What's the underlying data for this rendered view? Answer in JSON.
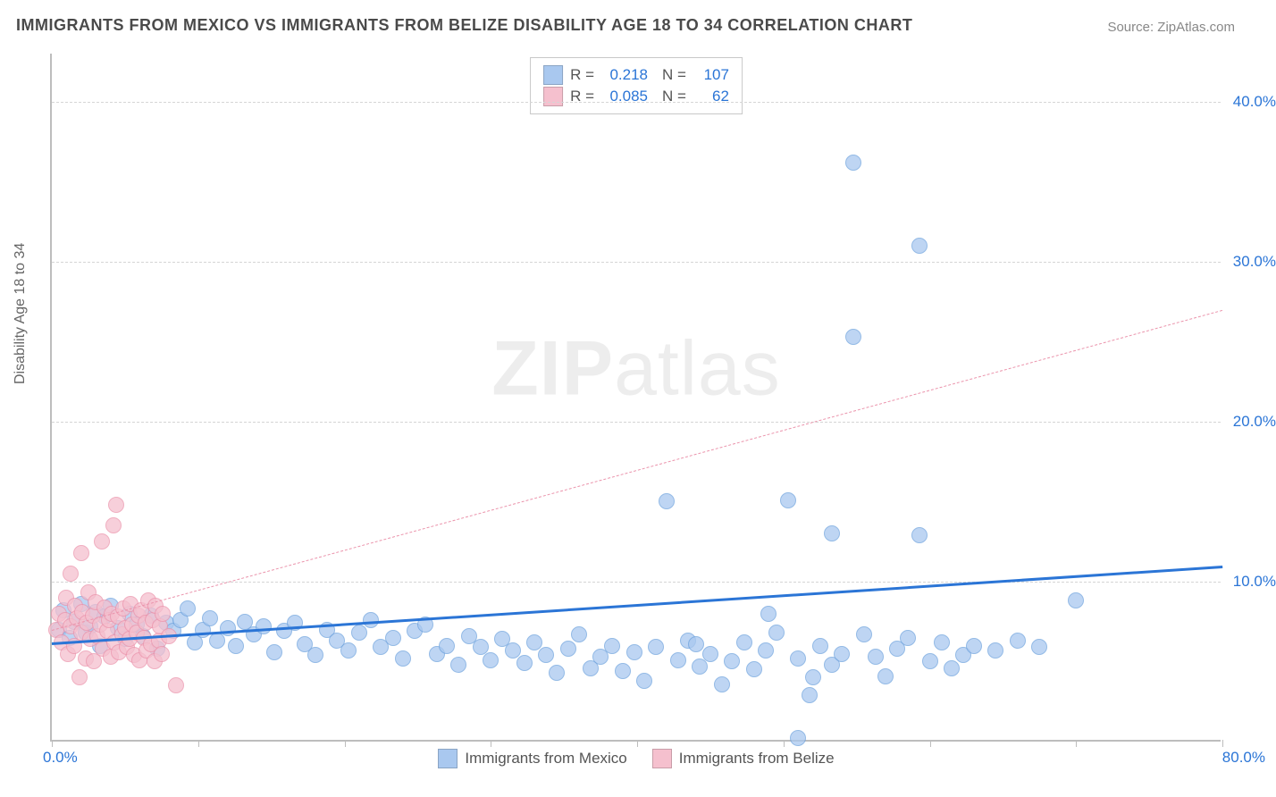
{
  "title": "IMMIGRANTS FROM MEXICO VS IMMIGRANTS FROM BELIZE DISABILITY AGE 18 TO 34 CORRELATION CHART",
  "source": "Source: ZipAtlas.com",
  "ylabel": "Disability Age 18 to 34",
  "watermark_bold": "ZIP",
  "watermark_rest": "atlas",
  "chart": {
    "type": "scatter",
    "xlim": [
      0,
      80
    ],
    "ylim": [
      0,
      43
    ],
    "x_ticks": [
      0,
      10,
      20,
      30,
      40,
      50,
      60,
      70,
      80
    ],
    "x_tick_labels": {
      "start": "0.0%",
      "end": "80.0%"
    },
    "y_ticks": [
      10,
      20,
      30,
      40
    ],
    "y_tick_labels": [
      "10.0%",
      "20.0%",
      "30.0%",
      "40.0%"
    ],
    "grid_color": "#d5d5d5",
    "axis_color": "#bdbdbd",
    "background_color": "#ffffff",
    "point_radius": 9,
    "series": [
      {
        "name": "Immigrants from Mexico",
        "color_fill": "#a9c8ef",
        "color_stroke": "#6fa3de",
        "R": "0.218",
        "N": "107",
        "trend": {
          "x1": 0,
          "y1": 6.2,
          "x2": 80,
          "y2": 11.0,
          "stroke": "#2b75d6",
          "width": 3,
          "dash": false
        },
        "points": [
          [
            0.5,
            7.0
          ],
          [
            0.8,
            8.2
          ],
          [
            1.2,
            6.5
          ],
          [
            1.5,
            7.5
          ],
          [
            2.0,
            8.6
          ],
          [
            2.3,
            6.8
          ],
          [
            2.6,
            7.2
          ],
          [
            3.0,
            8.1
          ],
          [
            3.3,
            6.0
          ],
          [
            3.6,
            7.8
          ],
          [
            4.0,
            8.5
          ],
          [
            4.5,
            7.1
          ],
          [
            5.0,
            6.4
          ],
          [
            5.3,
            8.0
          ],
          [
            5.8,
            7.3
          ],
          [
            6.2,
            6.6
          ],
          [
            6.8,
            7.9
          ],
          [
            7.2,
            5.8
          ],
          [
            7.8,
            7.4
          ],
          [
            8.3,
            6.9
          ],
          [
            8.8,
            7.6
          ],
          [
            9.3,
            8.3
          ],
          [
            9.8,
            6.2
          ],
          [
            10.3,
            7.0
          ],
          [
            10.8,
            7.7
          ],
          [
            11.3,
            6.3
          ],
          [
            12.0,
            7.1
          ],
          [
            12.6,
            6.0
          ],
          [
            13.2,
            7.5
          ],
          [
            13.8,
            6.7
          ],
          [
            14.5,
            7.2
          ],
          [
            15.2,
            5.6
          ],
          [
            15.9,
            6.9
          ],
          [
            16.6,
            7.4
          ],
          [
            17.3,
            6.1
          ],
          [
            18.0,
            5.4
          ],
          [
            18.8,
            7.0
          ],
          [
            19.5,
            6.3
          ],
          [
            20.3,
            5.7
          ],
          [
            21.0,
            6.8
          ],
          [
            21.8,
            7.6
          ],
          [
            22.5,
            5.9
          ],
          [
            23.3,
            6.5
          ],
          [
            24.0,
            5.2
          ],
          [
            24.8,
            6.9
          ],
          [
            25.5,
            7.3
          ],
          [
            26.3,
            5.5
          ],
          [
            27.0,
            6.0
          ],
          [
            27.8,
            4.8
          ],
          [
            28.5,
            6.6
          ],
          [
            29.3,
            5.9
          ],
          [
            30.0,
            5.1
          ],
          [
            30.8,
            6.4
          ],
          [
            31.5,
            5.7
          ],
          [
            32.3,
            4.9
          ],
          [
            33.0,
            6.2
          ],
          [
            33.8,
            5.4
          ],
          [
            34.5,
            4.3
          ],
          [
            35.3,
            5.8
          ],
          [
            36.0,
            6.7
          ],
          [
            36.8,
            4.6
          ],
          [
            37.5,
            5.3
          ],
          [
            38.3,
            6.0
          ],
          [
            39.0,
            4.4
          ],
          [
            39.8,
            5.6
          ],
          [
            40.5,
            3.8
          ],
          [
            41.3,
            5.9
          ],
          [
            42.0,
            15.0
          ],
          [
            42.8,
            5.1
          ],
          [
            43.5,
            6.3
          ],
          [
            44.3,
            4.7
          ],
          [
            45.0,
            5.5
          ],
          [
            45.8,
            3.6
          ],
          [
            46.5,
            5.0
          ],
          [
            47.3,
            6.2
          ],
          [
            48.0,
            4.5
          ],
          [
            48.8,
            5.7
          ],
          [
            49.5,
            6.8
          ],
          [
            50.3,
            15.1
          ],
          [
            51.0,
            5.2
          ],
          [
            51.8,
            2.9
          ],
          [
            52.5,
            6.0
          ],
          [
            53.3,
            4.8
          ],
          [
            54.0,
            5.5
          ],
          [
            54.8,
            36.2
          ],
          [
            54.8,
            25.3
          ],
          [
            53.3,
            13.0
          ],
          [
            55.5,
            6.7
          ],
          [
            56.3,
            5.3
          ],
          [
            57.0,
            4.1
          ],
          [
            57.8,
            5.8
          ],
          [
            58.5,
            6.5
          ],
          [
            59.3,
            31.0
          ],
          [
            59.3,
            12.9
          ],
          [
            60.0,
            5.0
          ],
          [
            60.8,
            6.2
          ],
          [
            61.5,
            4.6
          ],
          [
            62.3,
            5.4
          ],
          [
            63.0,
            6.0
          ],
          [
            64.5,
            5.7
          ],
          [
            66.0,
            6.3
          ],
          [
            67.5,
            5.9
          ],
          [
            70.0,
            8.8
          ],
          [
            51.0,
            0.2
          ],
          [
            49.0,
            8.0
          ],
          [
            52.0,
            4.0
          ],
          [
            44.0,
            6.1
          ]
        ]
      },
      {
        "name": "Immigrants from Belize",
        "color_fill": "#f5c0ce",
        "color_stroke": "#eb94ac",
        "R": "0.085",
        "N": "62",
        "trend": {
          "x1": 0,
          "y1": 7.0,
          "x2": 80,
          "y2": 27.0,
          "stroke": "#eb94ac",
          "width": 1.6,
          "dash": true
        },
        "points": [
          [
            0.3,
            7.0
          ],
          [
            0.5,
            8.0
          ],
          [
            0.7,
            6.2
          ],
          [
            0.9,
            7.6
          ],
          [
            1.0,
            9.0
          ],
          [
            1.1,
            5.5
          ],
          [
            1.3,
            7.2
          ],
          [
            1.3,
            10.5
          ],
          [
            1.5,
            6.0
          ],
          [
            1.6,
            8.5
          ],
          [
            1.7,
            7.7
          ],
          [
            1.9,
            4.0
          ],
          [
            2.0,
            6.8
          ],
          [
            2.0,
            11.8
          ],
          [
            2.1,
            8.1
          ],
          [
            2.3,
            5.2
          ],
          [
            2.4,
            7.4
          ],
          [
            2.5,
            9.3
          ],
          [
            2.6,
            6.4
          ],
          [
            2.8,
            7.9
          ],
          [
            2.9,
            5.0
          ],
          [
            3.0,
            8.7
          ],
          [
            3.1,
            6.6
          ],
          [
            3.3,
            7.3
          ],
          [
            3.4,
            12.5
          ],
          [
            3.5,
            5.8
          ],
          [
            3.6,
            8.4
          ],
          [
            3.8,
            6.9
          ],
          [
            3.9,
            7.6
          ],
          [
            4.0,
            5.3
          ],
          [
            4.1,
            8.0
          ],
          [
            4.3,
            6.2
          ],
          [
            4.4,
            14.8
          ],
          [
            4.5,
            7.8
          ],
          [
            4.6,
            5.6
          ],
          [
            4.8,
            6.7
          ],
          [
            4.9,
            8.3
          ],
          [
            5.0,
            7.1
          ],
          [
            5.1,
            5.9
          ],
          [
            5.3,
            6.4
          ],
          [
            5.4,
            8.6
          ],
          [
            5.5,
            7.3
          ],
          [
            5.6,
            5.4
          ],
          [
            5.8,
            6.8
          ],
          [
            5.9,
            7.9
          ],
          [
            6.0,
            5.1
          ],
          [
            6.1,
            8.2
          ],
          [
            6.3,
            6.5
          ],
          [
            6.4,
            7.4
          ],
          [
            6.5,
            5.7
          ],
          [
            6.6,
            8.8
          ],
          [
            6.8,
            6.1
          ],
          [
            6.9,
            7.6
          ],
          [
            7.0,
            5.0
          ],
          [
            7.1,
            8.5
          ],
          [
            7.3,
            6.3
          ],
          [
            7.4,
            7.2
          ],
          [
            7.5,
            5.5
          ],
          [
            7.6,
            8.0
          ],
          [
            8.0,
            6.6
          ],
          [
            8.5,
            3.5
          ],
          [
            4.2,
            13.5
          ]
        ]
      }
    ]
  },
  "legend_top": {
    "rows": [
      {
        "swatch": "#a9c8ef",
        "r_label": "R =",
        "r_val": "0.218",
        "n_label": "N =",
        "n_val": "107"
      },
      {
        "swatch": "#f5c0ce",
        "r_label": "R =",
        "r_val": "0.085",
        "n_label": "N =",
        "n_val": "62"
      }
    ]
  },
  "legend_bottom": [
    {
      "swatch": "#a9c8ef",
      "label": "Immigrants from Mexico"
    },
    {
      "swatch": "#f5c0ce",
      "label": "Immigrants from Belize"
    }
  ]
}
